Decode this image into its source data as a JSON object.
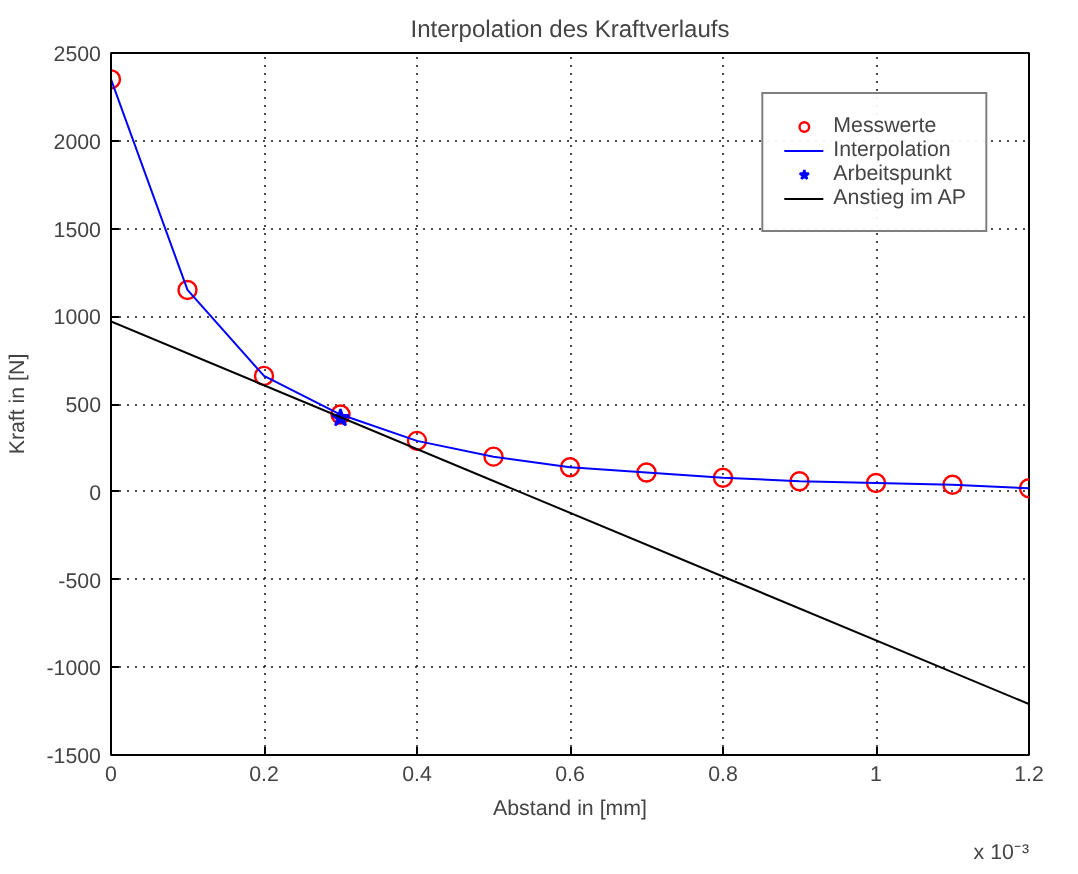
{
  "chart_data": {
    "type": "line",
    "title": "Interpolation des Kraftverlaufs",
    "xlabel": "Abstand in [mm]",
    "ylabel": "Kraft in [N]",
    "x": [
      0,
      0.1,
      0.2,
      0.3,
      0.4,
      0.5,
      0.6,
      0.7,
      0.8,
      0.9,
      1.0,
      1.1,
      1.2
    ],
    "xlim": [
      0,
      1.2
    ],
    "xticks": [
      0,
      0.2,
      0.4,
      0.6,
      0.8,
      1,
      1.2
    ],
    "ylim": [
      -1500,
      2500
    ],
    "yticks": [
      -1500,
      -1000,
      -500,
      0,
      500,
      1000,
      1500,
      2000,
      2500
    ],
    "grid": true,
    "legend": "top right",
    "annotations": [
      "x 10⁻³"
    ],
    "series": [
      {
        "name": "Messwerte",
        "type": "scatter",
        "marker": "circle",
        "color": "#ff0000",
        "values": [
          2350,
          1150,
          660,
          440,
          290,
          200,
          140,
          110,
          80,
          60,
          50,
          40,
          20
        ]
      },
      {
        "name": "Interpolation",
        "marker": "none",
        "color": "#0000ff",
        "values": [
          2350,
          1150,
          660,
          440,
          290,
          200,
          140,
          110,
          80,
          60,
          50,
          40,
          20
        ]
      },
      {
        "name": "Arbeitspunkt",
        "type": "scatter",
        "marker": "star",
        "color": "#0000ff",
        "x": [
          0.3
        ],
        "values": [
          420
        ]
      },
      {
        "name": "Anstieg im AP",
        "marker": "none",
        "color": "#000000",
        "x": [
          0,
          1.2
        ],
        "values": [
          970,
          -1210
        ]
      }
    ]
  }
}
